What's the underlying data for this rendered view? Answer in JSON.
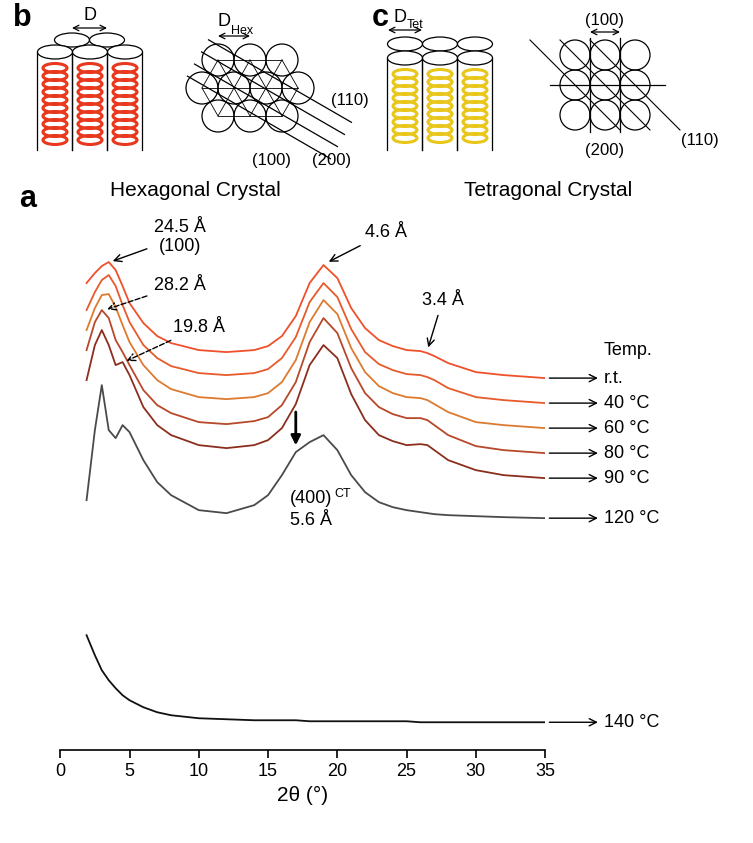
{
  "chart_data": {
    "type": "line",
    "panel_label": "a",
    "xlabel": "2θ (°)",
    "xlim": [
      0,
      35
    ],
    "xticks": [
      0,
      5,
      10,
      15,
      20,
      25,
      30,
      35
    ],
    "ylim": [
      0,
      530
    ],
    "tick_labels": "x",
    "grid": false,
    "series_title": "Temp.",
    "x": [
      1.9,
      2.5,
      3,
      3.5,
      4,
      4.5,
      5,
      6,
      7,
      8,
      10,
      12,
      14,
      15,
      16,
      17,
      18,
      19,
      20,
      21,
      22,
      23,
      24,
      25,
      26,
      26.5,
      27,
      28,
      30,
      32,
      35
    ],
    "series": [
      {
        "name": "r.t.",
        "color": "#f0502a",
        "values": [
          467,
          477,
          484,
          488,
          480,
          464,
          447,
          427,
          414,
          407,
          400,
          398,
          400,
          404,
          414,
          434,
          467,
          485,
          472,
          442,
          422,
          410,
          404,
          400,
          399,
          397,
          394,
          387,
          378,
          375,
          372
        ]
      },
      {
        "name": "40 °C",
        "color": "#e65a2c",
        "values": [
          440,
          458,
          470,
          475,
          464,
          445,
          428,
          405,
          392,
          384,
          377,
          375,
          377,
          381,
          392,
          413,
          448,
          467,
          453,
          421,
          398,
          386,
          380,
          376,
          375,
          373,
          370,
          362,
          353,
          350,
          347
        ]
      },
      {
        "name": "60 °C",
        "color": "#dc7a30",
        "values": [
          420,
          442,
          455,
          456,
          443,
          425,
          408,
          385,
          370,
          361,
          353,
          351,
          353,
          357,
          368,
          390,
          428,
          450,
          436,
          402,
          378,
          364,
          357,
          353,
          352,
          350,
          346,
          338,
          328,
          325,
          322
        ]
      },
      {
        "name": "80 °C",
        "color": "#b8482a",
        "values": [
          400,
          428,
          440,
          432,
          410,
          398,
          385,
          360,
          345,
          337,
          328,
          326,
          329,
          333,
          345,
          368,
          408,
          432,
          417,
          382,
          357,
          343,
          336,
          332,
          332,
          330,
          325,
          315,
          304,
          300,
          297
        ]
      },
      {
        "name": "90 °C",
        "color": "#8c2e1e",
        "values": [
          370,
          405,
          420,
          405,
          385,
          388,
          375,
          343,
          325,
          315,
          305,
          302,
          305,
          310,
          322,
          346,
          385,
          405,
          392,
          356,
          330,
          315,
          309,
          305,
          306,
          305,
          300,
          290,
          280,
          275,
          272
        ]
      },
      {
        "name": "120 °C",
        "color": "#4a4a4a",
        "values": [
          250,
          320,
          365,
          320,
          312,
          325,
          318,
          290,
          268,
          255,
          240,
          237,
          245,
          255,
          275,
          298,
          308,
          315,
          300,
          275,
          258,
          248,
          243,
          240,
          238,
          237,
          236,
          235,
          234,
          233,
          232
        ]
      },
      {
        "name": "140 °C",
        "color": "#111111",
        "values": [
          115,
          95,
          80,
          70,
          62,
          55,
          50,
          43,
          38,
          35,
          32,
          31,
          30,
          30,
          30,
          30,
          29,
          29,
          29,
          29,
          29,
          29,
          29,
          29,
          28,
          28,
          28,
          28,
          28,
          28,
          28
        ]
      }
    ],
    "annotations": [
      {
        "lines": [
          "24.5 Å",
          "(100)"
        ],
        "x": 3.6,
        "y": 488,
        "line_style": "solid"
      },
      {
        "lines": [
          "28.2 Å"
        ],
        "x": 3.2,
        "y": 440,
        "line_style": "dashed"
      },
      {
        "lines": [
          "19.8 Å"
        ],
        "x": 4.6,
        "y": 388,
        "line_style": "dashed"
      },
      {
        "lines": [
          "4.6 Å"
        ],
        "x": 19.2,
        "y": 487,
        "line_style": "solid"
      },
      {
        "lines": [
          "3.4 Å"
        ],
        "x": 26.5,
        "y": 400,
        "line_style": "solid"
      },
      {
        "lines": [
          {
            "main": "(400)",
            "sub": "CT"
          },
          "5.6 Å"
        ],
        "x": 17,
        "y": 302,
        "line_style": "solid"
      }
    ]
  },
  "diagrams": [
    {
      "panel_label": "b",
      "dimension_label": "D",
      "lattice_label": {
        "main": "D",
        "sub": "Hex"
      },
      "planes": [
        "(100)",
        "(110)",
        "(200)"
      ],
      "caption": "Hexagonal Crystal"
    },
    {
      "panel_label": "c",
      "lattice_label": {
        "main": "D",
        "sub": "Tet"
      },
      "planes": [
        "(100)",
        "(200)",
        "(110)"
      ],
      "caption": "Tetragonal Crystal"
    }
  ]
}
